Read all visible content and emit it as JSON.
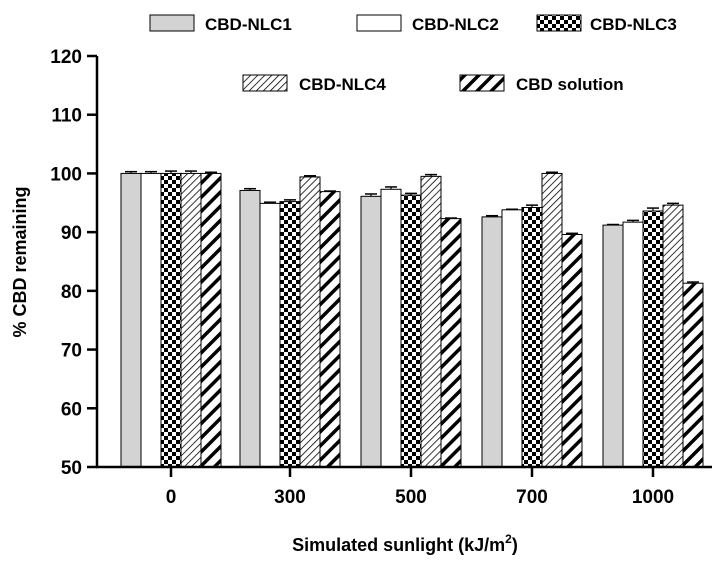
{
  "chart_data": {
    "type": "bar",
    "title": "",
    "xlabel": "Simulated sunlight (kJ/m",
    "xlabel_sup": "2",
    "xlabel_close": ")",
    "ylabel": "% CBD remaining",
    "ylim": [
      50,
      120
    ],
    "yticks": [
      50,
      60,
      70,
      80,
      90,
      100,
      110,
      120
    ],
    "categories": [
      "0",
      "300",
      "500",
      "700",
      "1000"
    ],
    "grid": false,
    "legend_position": "top",
    "series": [
      {
        "name": "CBD-NLC1",
        "pattern": "solid-gray",
        "values": [
          100.0,
          97.1,
          96.1,
          92.6,
          91.2
        ],
        "errors": [
          0.3,
          0.3,
          0.4,
          0.2,
          0.1
        ]
      },
      {
        "name": "CBD-NLC2",
        "pattern": "white",
        "values": [
          100.0,
          94.9,
          97.3,
          93.8,
          91.7
        ],
        "errors": [
          0.3,
          0.2,
          0.4,
          0.1,
          0.3
        ]
      },
      {
        "name": "CBD-NLC3",
        "pattern": "checker",
        "values": [
          100.0,
          95.2,
          96.3,
          94.2,
          93.6
        ],
        "errors": [
          0.4,
          0.3,
          0.3,
          0.4,
          0.5
        ]
      },
      {
        "name": "CBD-NLC4",
        "pattern": "light-diagonal",
        "values": [
          100.0,
          99.4,
          99.5,
          100.0,
          94.6
        ],
        "errors": [
          0.4,
          0.2,
          0.3,
          0.2,
          0.3
        ]
      },
      {
        "name": "CBD solution",
        "pattern": "heavy-diagonal",
        "values": [
          100.0,
          96.9,
          92.3,
          89.6,
          81.3
        ],
        "errors": [
          0.2,
          0.1,
          0.1,
          0.2,
          0.2
        ]
      }
    ],
    "colors": {
      "axis": "#000000",
      "gray": "#d3d3d3",
      "white": "#ffffff"
    }
  }
}
